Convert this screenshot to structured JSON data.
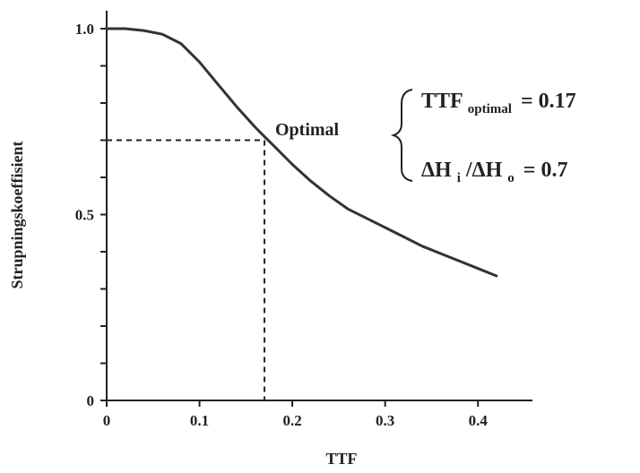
{
  "chart_data": {
    "type": "line",
    "xlabel": "TTF",
    "ylabel": "Strupningskoeffisient",
    "xlim": [
      0,
      0.42
    ],
    "ylim": [
      0,
      1.0
    ],
    "x_ticks": [
      0,
      0.1,
      0.2,
      0.3,
      0.4
    ],
    "x_tick_labels": [
      "0",
      "0.1",
      "0.2",
      "0.3",
      "0.4"
    ],
    "y_ticks": [
      0,
      0.1,
      0.2,
      0.3,
      0.4,
      0.5,
      0.6,
      0.7,
      0.8,
      0.9,
      1.0
    ],
    "y_tick_labels": [
      "0",
      "",
      "",
      "",
      "",
      "0.5",
      "",
      "",
      "",
      "",
      "1.0"
    ],
    "grid": false,
    "legend": "none",
    "series": [
      {
        "x": [
          0,
          0.02,
          0.04,
          0.06,
          0.08,
          0.1,
          0.12,
          0.14,
          0.16,
          0.17,
          0.18,
          0.2,
          0.22,
          0.24,
          0.26,
          0.28,
          0.3,
          0.32,
          0.34,
          0.36,
          0.38,
          0.4,
          0.42
        ],
        "y": [
          1.0,
          1.0,
          0.995,
          0.985,
          0.96,
          0.91,
          0.85,
          0.79,
          0.735,
          0.71,
          0.685,
          0.635,
          0.59,
          0.55,
          0.515,
          0.49,
          0.465,
          0.44,
          0.415,
          0.395,
          0.375,
          0.355,
          0.335
        ],
        "color": "#333333"
      }
    ],
    "reference_point": {
      "x": 0.17,
      "y": 0.7
    },
    "annotations": {
      "point_label": "Optimal",
      "ttf_symbol": "TTF",
      "ttf_subscript": "optimal",
      "ttf_value": "= 0.17",
      "dh_first": "ΔH",
      "dh_first_sub": "i",
      "dh_slash": "/ΔH",
      "dh_second_sub": "o",
      "dh_value": "= 0.7"
    }
  }
}
